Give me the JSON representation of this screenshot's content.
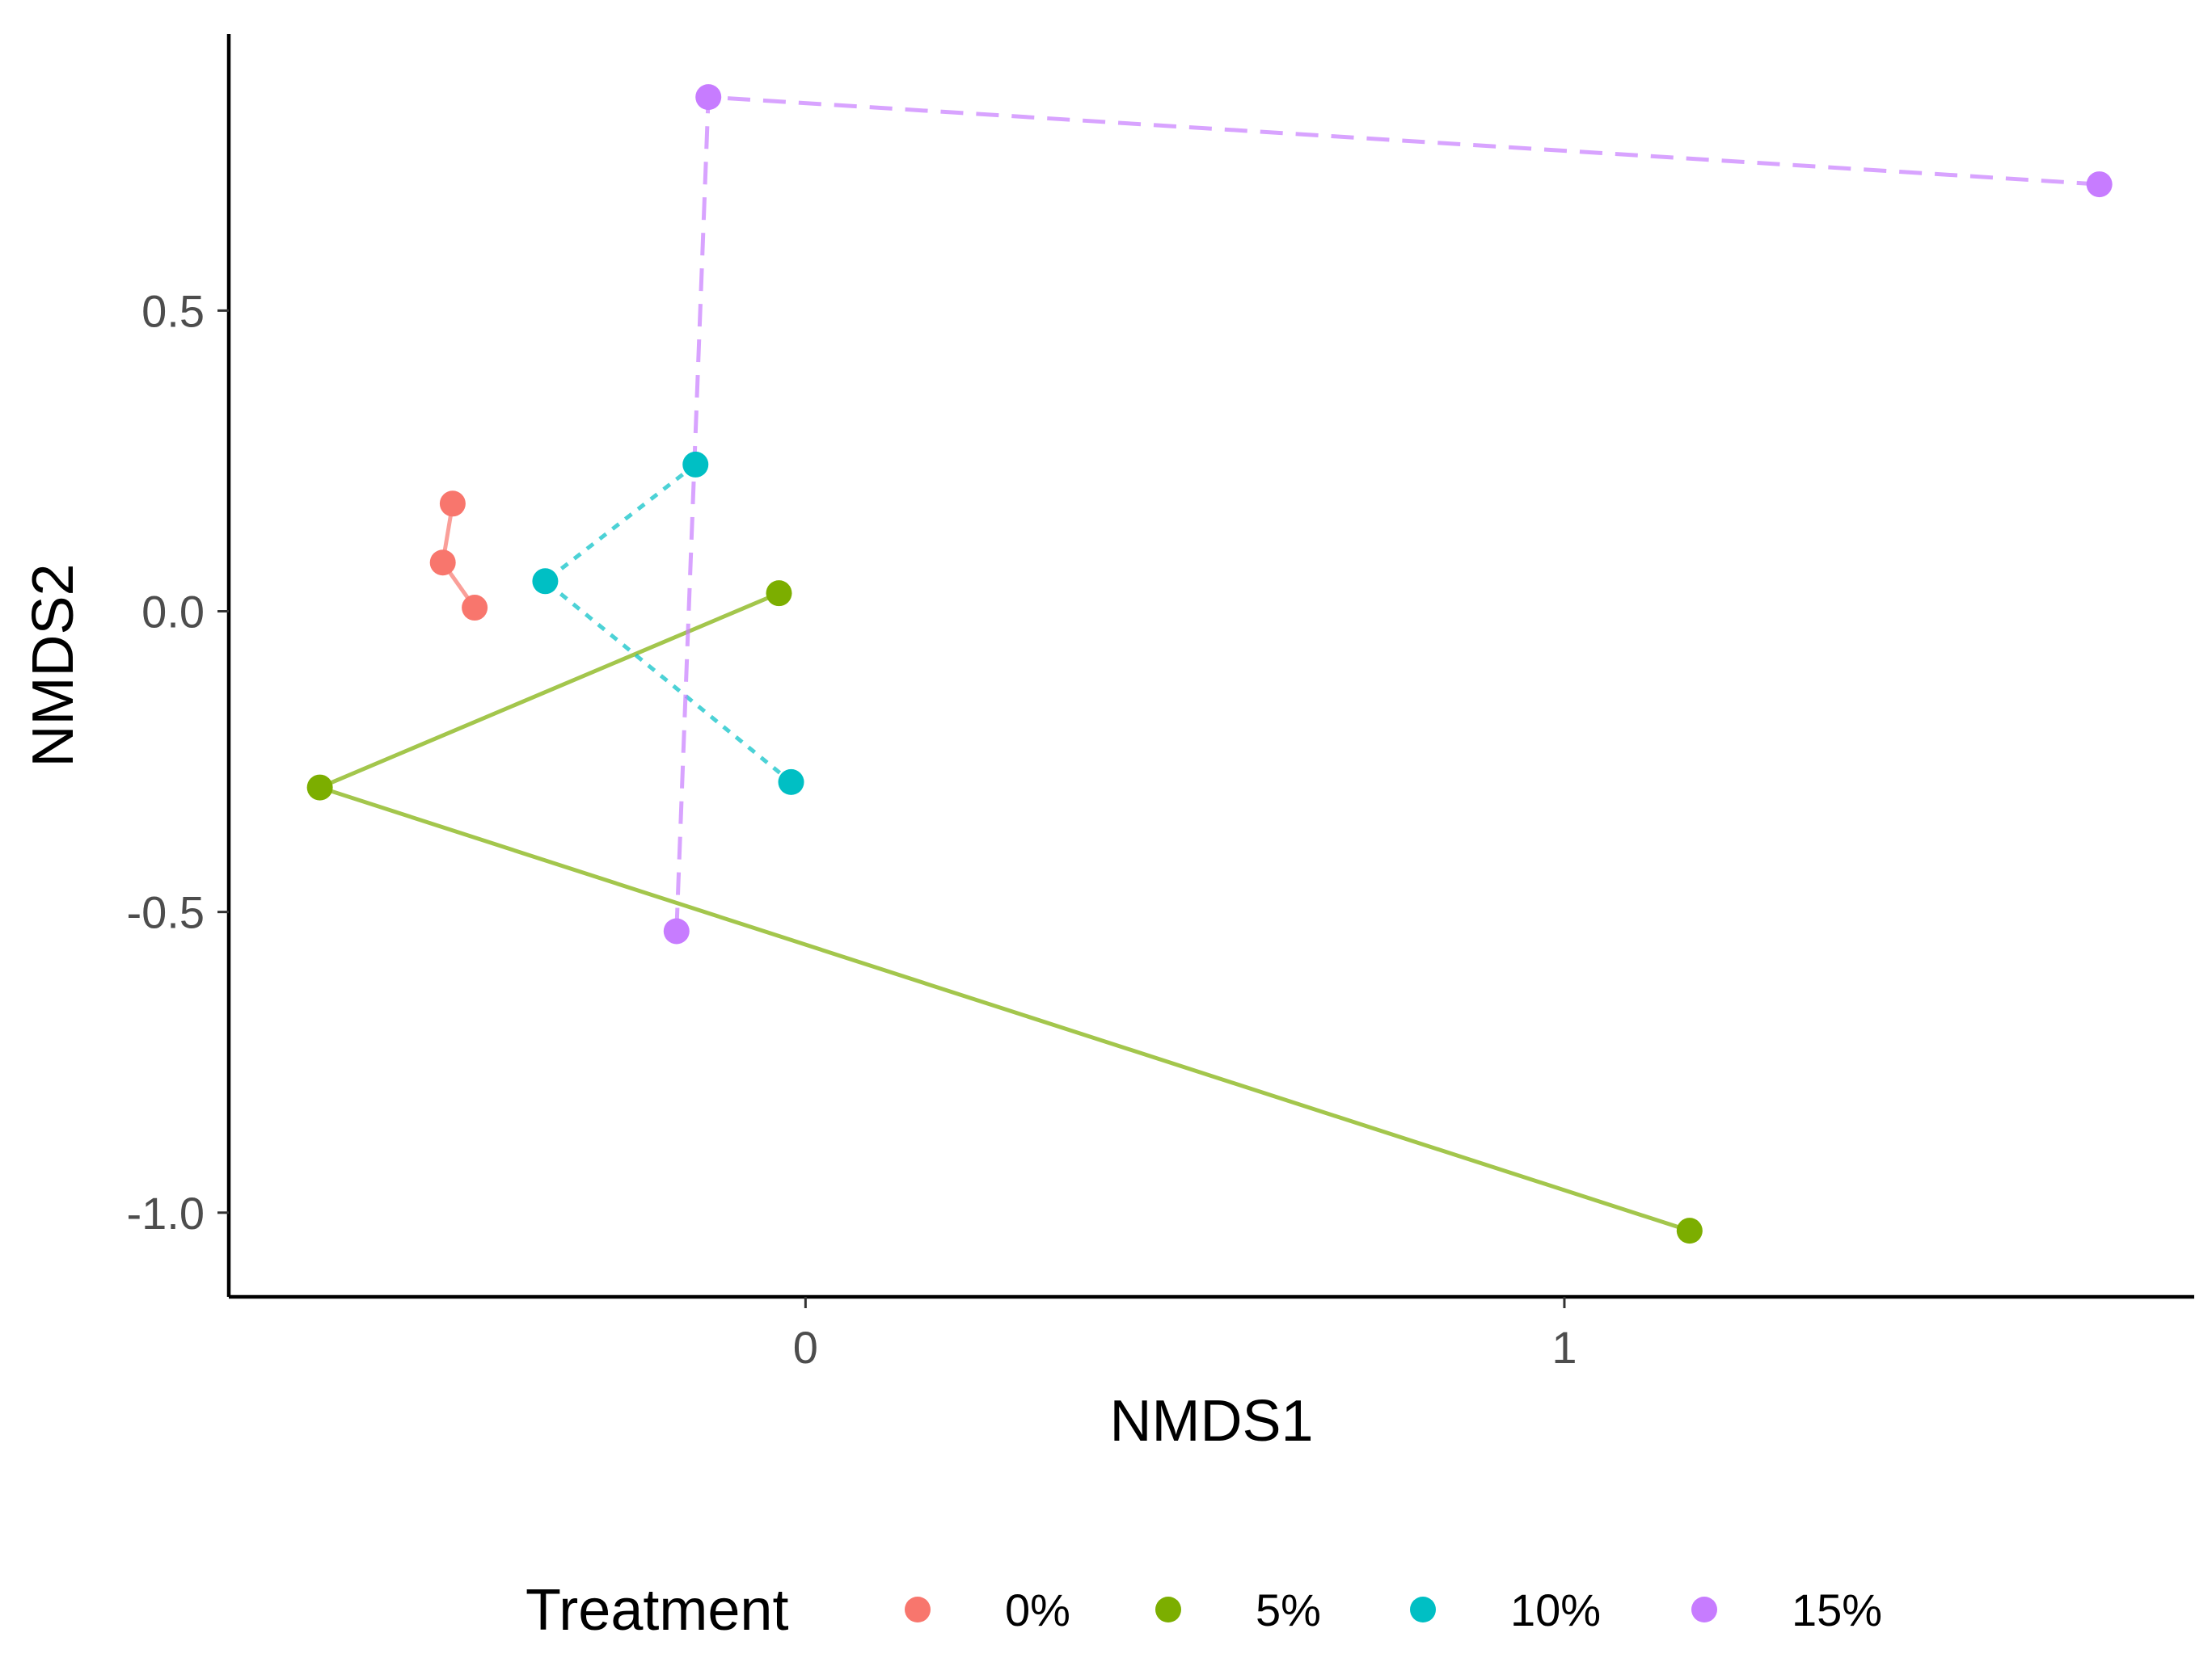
{
  "chart_data": {
    "type": "scatter",
    "xlabel": "NMDS1",
    "ylabel": "NMDS2",
    "xlim": [
      -0.76,
      1.83
    ],
    "ylim": [
      -1.14,
      0.96
    ],
    "x_ticks": [
      {
        "value": 0,
        "label": "0"
      },
      {
        "value": 1,
        "label": "1"
      }
    ],
    "y_ticks": [
      {
        "value": 0.5,
        "label": "0.5"
      },
      {
        "value": 0.0,
        "label": "0.0"
      },
      {
        "value": -0.5,
        "label": "-0.5"
      },
      {
        "value": -1.0,
        "label": "-1.0"
      }
    ],
    "grid": false,
    "legend": {
      "title": "Treatment",
      "placement": "bottom"
    },
    "series": [
      {
        "name": "0%",
        "color": "#F8766D",
        "line_style": "solid",
        "points": [
          {
            "x": -0.465,
            "y": 0.179
          },
          {
            "x": -0.478,
            "y": 0.081
          },
          {
            "x": -0.436,
            "y": 0.006
          }
        ]
      },
      {
        "name": "5%",
        "color": "#7CAE00",
        "line_style": "solid",
        "points": [
          {
            "x": -0.035,
            "y": 0.03
          },
          {
            "x": -0.64,
            "y": -0.293
          },
          {
            "x": 1.165,
            "y": -1.03
          }
        ]
      },
      {
        "name": "10%",
        "color": "#00BFC4",
        "line_style": "dotted",
        "points": [
          {
            "x": -0.145,
            "y": 0.244
          },
          {
            "x": -0.343,
            "y": 0.05
          },
          {
            "x": -0.019,
            "y": -0.284
          }
        ]
      },
      {
        "name": "15%",
        "color": "#C77CFF",
        "line_style": "dashed",
        "points": [
          {
            "x": 1.705,
            "y": 0.71
          },
          {
            "x": -0.128,
            "y": 0.855
          },
          {
            "x": -0.17,
            "y": -0.532
          }
        ]
      }
    ]
  }
}
